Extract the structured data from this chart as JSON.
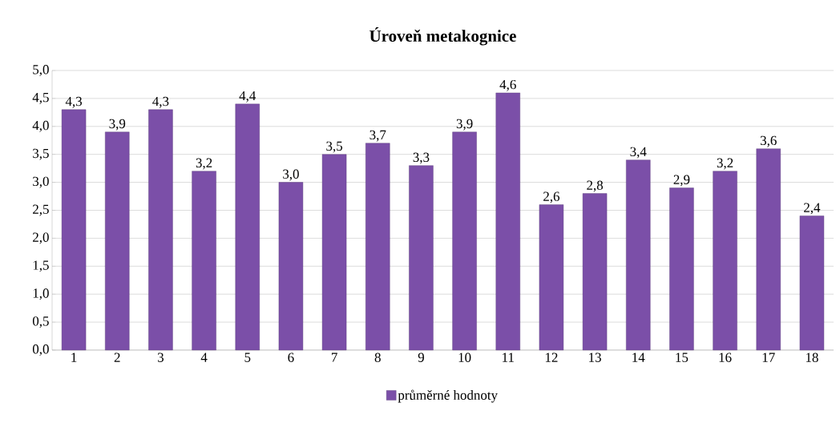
{
  "chart_data": {
    "type": "bar",
    "title": "Úroveň metakognice",
    "categories": [
      "1",
      "2",
      "3",
      "4",
      "5",
      "6",
      "7",
      "8",
      "9",
      "10",
      "11",
      "12",
      "13",
      "14",
      "15",
      "16",
      "17",
      "18"
    ],
    "series": [
      {
        "name": "průměrné hodnoty",
        "color": "#7b4fa8",
        "values": [
          4.3,
          3.9,
          4.3,
          3.2,
          4.4,
          3.0,
          3.5,
          3.7,
          3.3,
          3.9,
          4.6,
          2.6,
          2.8,
          3.4,
          2.9,
          3.2,
          3.6,
          2.4
        ],
        "value_labels": [
          "4,3",
          "3,9",
          "4,3",
          "3,2",
          "4,4",
          "3,0",
          "3,5",
          "3,7",
          "3,3",
          "3,9",
          "4,6",
          "2,6",
          "2,8",
          "3,4",
          "2,9",
          "3,2",
          "3,6",
          "2,4"
        ]
      }
    ],
    "ylim": [
      0,
      5
    ],
    "yticks": [
      {
        "value": 0,
        "label": "0,0"
      },
      {
        "value": 0.5,
        "label": "0,5"
      },
      {
        "value": 1,
        "label": "1,0"
      },
      {
        "value": 1.5,
        "label": "1,5"
      },
      {
        "value": 2,
        "label": "2,0"
      },
      {
        "value": 2.5,
        "label": "2,5"
      },
      {
        "value": 3,
        "label": "3,0"
      },
      {
        "value": 3.5,
        "label": "3,5"
      },
      {
        "value": 4,
        "label": "4,0"
      },
      {
        "value": 4.5,
        "label": "4,5"
      },
      {
        "value": 5,
        "label": "5,0"
      }
    ],
    "grid": "y",
    "legend": "bottom"
  }
}
